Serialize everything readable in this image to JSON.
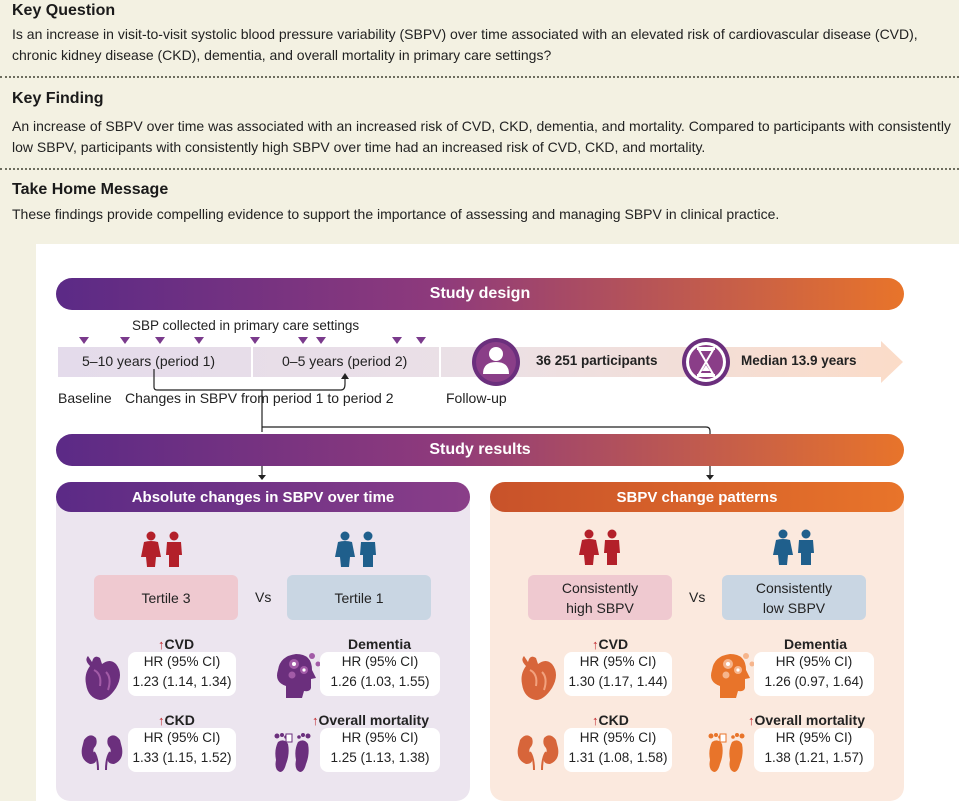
{
  "key_question": {
    "title": "Key Question",
    "text": "Is an increase in visit-to-visit systolic blood pressure variability (SBPV) over time associated with an elevated risk of cardiovascular disease (CVD), chronic kidney disease (CKD), dementia, and overall mortality in primary care settings?"
  },
  "key_finding": {
    "title": "Key Finding",
    "text": "An increase of SBPV over time was associated with an increased risk of CVD, CKD, dementia, and mortality. Compared to participants with consistently low SBPV, participants with consistently high SBPV over time had an increased risk of CVD, CKD, and mortality."
  },
  "take_home": {
    "title": "Take Home Message",
    "text": "These findings provide compelling evidence to support the importance of assessing and managing SBPV in clinical practice."
  },
  "design": {
    "title": "Study design",
    "sbp_label": "SBP collected in primary care settings",
    "period1": "5–10 years (period 1)",
    "period2": "0–5 years (period 2)",
    "baseline": "Baseline",
    "changes": "Changes in SBPV from period 1 to period 2",
    "followup": "Follow-up",
    "participants": "36 251 participants",
    "median": "Median 13.9 years"
  },
  "results": {
    "title": "Study results",
    "left": {
      "title": "Absolute changes in SBPV over time",
      "group_a": "Tertile 3",
      "vs": "Vs",
      "group_b": "Tertile 1",
      "outcomes": [
        {
          "name": "CVD",
          "arrow": "↑",
          "hr_label": "HR (95% CI)",
          "value": "1.23 (1.14, 1.34)"
        },
        {
          "name": "Dementia",
          "arrow": "",
          "hr_label": "HR (95% CI)",
          "value": "1.26 (1.03, 1.55)"
        },
        {
          "name": "CKD",
          "arrow": "↑",
          "hr_label": "HR (95% CI)",
          "value": "1.33 (1.15, 1.52)"
        },
        {
          "name": "Overall mortality",
          "arrow": "↑",
          "hr_label": "HR (95% CI)",
          "value": "1.25 (1.13, 1.38)"
        }
      ]
    },
    "right": {
      "title": "SBPV change patterns",
      "group_a_1": "Consistently",
      "group_a_2": "high SBPV",
      "vs": "Vs",
      "group_b_1": "Consistently",
      "group_b_2": "low SBPV",
      "outcomes": [
        {
          "name": "CVD",
          "arrow": "↑",
          "hr_label": "HR (95% CI)",
          "value": "1.30 (1.17, 1.44)"
        },
        {
          "name": "Dementia",
          "arrow": "",
          "hr_label": "HR (95% CI)",
          "value": "1.26 (0.97, 1.64)"
        },
        {
          "name": "CKD",
          "arrow": "↑",
          "hr_label": "HR (95% CI)",
          "value": "1.31 (1.08, 1.58)"
        },
        {
          "name": "Overall mortality",
          "arrow": "↑",
          "hr_label": "HR (95% CI)",
          "value": "1.38 (1.21, 1.57)"
        }
      ]
    }
  },
  "colors": {
    "purple": "#5b2a86",
    "orange": "#e8742a",
    "red_figure": "#c0262b",
    "blue_figure": "#2b6fa0",
    "tertile3_bg": "#efc9d0",
    "tertile1_bg": "#c9d6e3"
  },
  "icons": [
    "marker-triangle-icon",
    "person-icon",
    "hourglass-icon",
    "people-red-icon",
    "people-blue-icon",
    "heart-icon",
    "brain-gears-icon",
    "kidneys-icon",
    "footprints-icon"
  ]
}
